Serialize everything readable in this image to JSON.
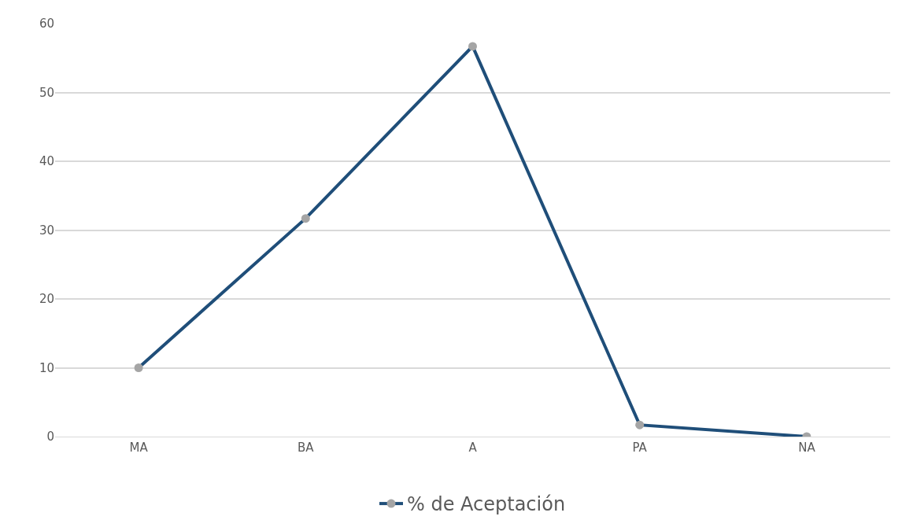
{
  "chart_data": {
    "type": "line",
    "categories": [
      "MA",
      "BA",
      "A",
      "PA",
      "NA"
    ],
    "series": [
      {
        "name": "% de Aceptación",
        "color": "#1f4e79",
        "values": [
          10,
          31.7,
          56.7,
          1.7,
          0
        ]
      }
    ],
    "ylim": [
      0,
      60
    ],
    "yticks": [
      0,
      10,
      20,
      30,
      40,
      50,
      60
    ],
    "grid": "y",
    "legend": "bottom",
    "marker": "circle",
    "line_style": "solid"
  }
}
